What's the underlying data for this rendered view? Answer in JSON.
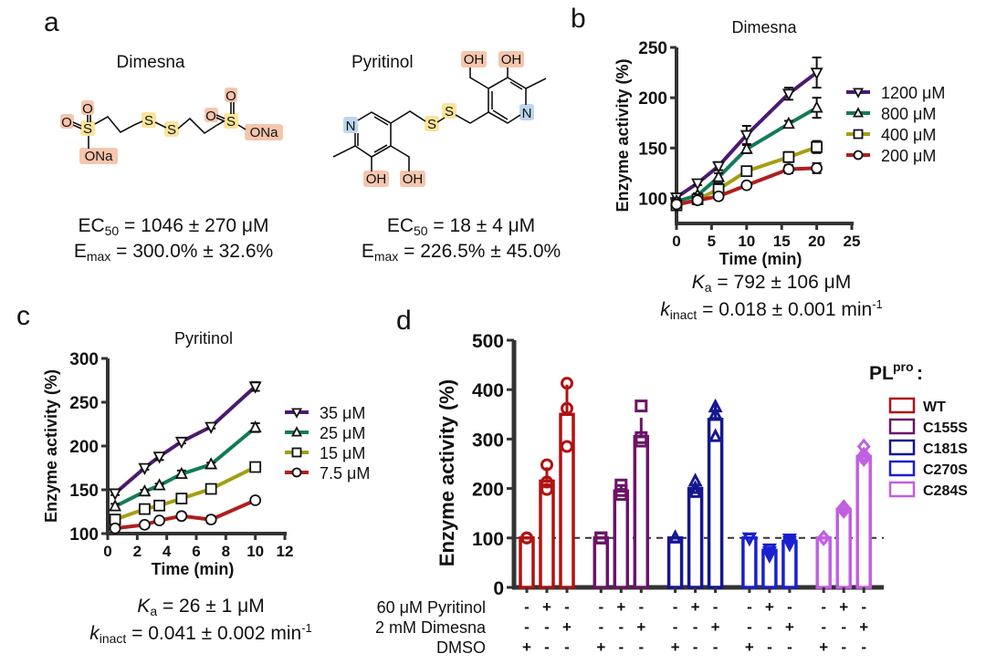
{
  "panel_a": {
    "letter": "a",
    "compound1": {
      "name": "Dimesna",
      "atoms": [
        "O",
        "O",
        "S",
        "ONa",
        "S",
        "S",
        "O",
        "O",
        "S",
        "ONa"
      ],
      "ec50_label": "EC",
      "ec50_sub": "50",
      "ec50_value": " = 1046 ± 270 μM",
      "emax_label": "E",
      "emax_sub": "max",
      "emax_value": " = 300.0% ± 32.6%"
    },
    "compound2": {
      "name": "Pyritinol",
      "atoms": [
        "OH",
        "OH",
        "N",
        "S",
        "S",
        "N",
        "OH",
        "OH"
      ],
      "ec50_label": "EC",
      "ec50_sub": "50",
      "ec50_value": " = 18 ± 4 μM",
      "emax_label": "E",
      "emax_sub": "max",
      "emax_value": " = 226.5% ± 45.0%"
    },
    "highlight_colors": {
      "oxygen": "#f5c6ad",
      "sulfur": "#fbe49a",
      "nitrogen": "#bcd6ee"
    }
  },
  "panel_b": {
    "letter": "b",
    "ka_label": "K",
    "ka_sub": "a",
    "ka_value": " = 792 ± 106 μM",
    "kinact_label": "k",
    "kinact_sub": "inact",
    "kinact_value": " = 0.018 ± 0.001 min",
    "kinact_sup": "-1"
  },
  "panel_c": {
    "letter": "c",
    "ka_label": "K",
    "ka_sub": "a",
    "ka_value": " = 26 ± 1 μM",
    "kinact_label": "k",
    "kinact_sub": "inact",
    "kinact_value": " = 0.041 ± 0.002 min",
    "kinact_sup": "-1"
  },
  "panel_d": {
    "letter": "d",
    "legend_title": "PL",
    "legend_title_sup": "pro",
    "legend_title_colon": ":",
    "treatments": [
      {
        "label": "60 μM Pyritinol",
        "signs": [
          "-",
          "+",
          "-",
          "-",
          "+",
          "-",
          "-",
          "+",
          "-",
          "-",
          "+",
          "-",
          "-",
          "+",
          "-"
        ]
      },
      {
        "label": "2 mM Dimesna",
        "signs": [
          "-",
          "-",
          "+",
          "-",
          "-",
          "+",
          "-",
          "-",
          "+",
          "-",
          "-",
          "+",
          "-",
          "-",
          "+"
        ]
      },
      {
        "label": "DMSO",
        "signs": [
          "+",
          "-",
          "-",
          "+",
          "-",
          "-",
          "+",
          "-",
          "-",
          "+",
          "-",
          "-",
          "+",
          "-",
          "-"
        ]
      }
    ]
  },
  "chart_data": [
    {
      "id": "b",
      "type": "line",
      "title": "Dimesna",
      "xlabel": "Time (min)",
      "ylabel": "Enzyme activity (%)",
      "xlim": [
        0,
        25
      ],
      "ylim": [
        75,
        250
      ],
      "xticks": [
        "0",
        "5",
        "10",
        "15",
        "20",
        "25"
      ],
      "yticks": [
        "100",
        "150",
        "200",
        "250"
      ],
      "x": [
        0,
        3,
        6,
        10,
        16,
        20
      ],
      "legend_position": "right",
      "series": [
        {
          "name": "1200 μM",
          "color": "#4b1a6e",
          "marker": "triangle-down",
          "values": [
            101,
            115,
            132,
            163,
            204,
            225
          ],
          "errors": [
            3,
            2,
            4,
            9,
            6,
            15
          ]
        },
        {
          "name": "800 μM",
          "color": "#137a5b",
          "marker": "triangle-up",
          "values": [
            97,
            103,
            121,
            149,
            174,
            190
          ],
          "errors": [
            3,
            2,
            4,
            4,
            3,
            10
          ]
        },
        {
          "name": "400 μM",
          "color": "#a39e12",
          "marker": "square",
          "values": [
            93,
            99,
            109,
            127,
            141,
            151
          ],
          "errors": [
            3,
            2,
            6,
            4,
            5,
            6
          ]
        },
        {
          "name": "200 μM",
          "color": "#b01e1e",
          "marker": "circle",
          "values": [
            94,
            98,
            102,
            113,
            129,
            130
          ],
          "errors": [
            3,
            2,
            3,
            2,
            4,
            5
          ]
        }
      ]
    },
    {
      "id": "c",
      "type": "line",
      "title": "Pyritinol",
      "xlabel": "Time (min)",
      "ylabel": "Enzyme activity (%)",
      "xlim": [
        0,
        12
      ],
      "ylim": [
        100,
        300
      ],
      "xticks": [
        "0",
        "2",
        "4",
        "6",
        "8",
        "10",
        "12"
      ],
      "yticks": [
        "100",
        "150",
        "200",
        "250",
        "300"
      ],
      "x": [
        0.5,
        2.5,
        3.5,
        5,
        7,
        10
      ],
      "legend_position": "right",
      "series": [
        {
          "name": "35 μM",
          "color": "#4b1a6e",
          "marker": "triangle-down",
          "values": [
            146,
            175,
            188,
            205,
            222,
            268
          ],
          "errors": [
            2,
            2,
            4,
            2,
            2,
            5
          ]
        },
        {
          "name": "25 μM",
          "color": "#137a5b",
          "marker": "triangle-up",
          "values": [
            131,
            148,
            155,
            168,
            179,
            221
          ],
          "errors": [
            3,
            2,
            2,
            4,
            2,
            5
          ]
        },
        {
          "name": "15 μM",
          "color": "#a39e12",
          "marker": "square",
          "values": [
            116,
            128,
            132,
            140,
            151,
            176
          ],
          "errors": [
            2,
            2,
            2,
            2,
            2,
            4
          ]
        },
        {
          "name": "7.5 μM",
          "color": "#b01e1e",
          "marker": "circle",
          "values": [
            106,
            110,
            115,
            120,
            116,
            138
          ],
          "errors": [
            2,
            2,
            2,
            2,
            4,
            2
          ]
        }
      ]
    },
    {
      "id": "d",
      "type": "bar",
      "ylabel": "Enzyme activity (%)",
      "ylim": [
        0,
        500
      ],
      "yticks": [
        "0",
        "100",
        "200",
        "300",
        "400",
        "500"
      ],
      "reference_line": 100,
      "groups": [
        {
          "name": "WT",
          "color": "#b01212",
          "marker": "circle",
          "values": [
            100,
            215,
            350
          ],
          "points": [
            [
              100,
              100,
              100
            ],
            [
              198,
              213,
              248
            ],
            [
              285,
              362,
              413
            ]
          ],
          "errors": [
            0,
            28,
            60
          ]
        },
        {
          "name": "C155S",
          "color": "#6b1466",
          "marker": "square",
          "values": [
            100,
            195,
            305
          ],
          "points": [
            [
              100,
              100,
              100
            ],
            [
              188,
              196,
              207
            ],
            [
              296,
              303,
              367
            ]
          ],
          "errors": [
            0,
            10,
            38
          ]
        },
        {
          "name": "C181S",
          "color": "#15178f",
          "marker": "triangle-up",
          "values": [
            100,
            200,
            340
          ],
          "points": [
            [
              100,
              100,
              100
            ],
            [
              192,
              200,
              215
            ],
            [
              305,
              350,
              365
            ]
          ],
          "errors": [
            0,
            12,
            30
          ]
        },
        {
          "name": "C270S",
          "color": "#1a1fd0",
          "marker": "triangle-down",
          "values": [
            100,
            75,
            93
          ],
          "points": [
            [
              100,
              100,
              100
            ],
            [
              65,
              72,
              78
            ],
            [
              88,
              93,
              98
            ]
          ],
          "errors": [
            0,
            6,
            5
          ]
        },
        {
          "name": "C284S",
          "color": "#c15fe0",
          "marker": "diamond",
          "values": [
            100,
            158,
            265
          ],
          "points": [
            [
              100,
              100,
              100
            ],
            [
              155,
              158,
              162
            ],
            [
              260,
              268,
              285
            ]
          ],
          "errors": [
            0,
            4,
            12
          ]
        }
      ]
    }
  ]
}
